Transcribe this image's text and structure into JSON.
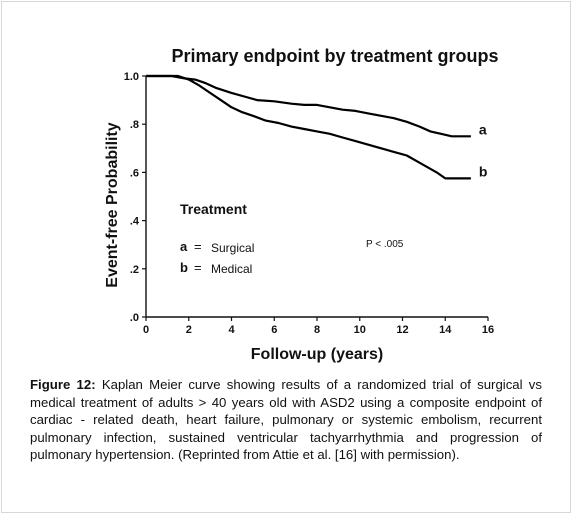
{
  "chart_data": {
    "type": "line",
    "title": "Primary endpoint by treatment groups",
    "xlabel": "Follow-up (years)",
    "ylabel": "Event-free Probability",
    "xlim": [
      0,
      16
    ],
    "ylim": [
      0,
      1.0
    ],
    "x_ticks": [
      "0",
      "2",
      "4",
      "6",
      "8",
      "10",
      "12",
      "14",
      "16"
    ],
    "y_ticks": [
      {
        "value": 0.0,
        "label": ".0"
      },
      {
        "value": 0.2,
        "label": ".2"
      },
      {
        "value": 0.4,
        "label": ".4"
      },
      {
        "value": 0.6,
        "label": ".6"
      },
      {
        "value": 0.8,
        "label": ".8"
      },
      {
        "value": 1.0,
        "label": "1.0"
      }
    ],
    "grid": false,
    "series": [
      {
        "name": "a",
        "color": "#000000",
        "points": [
          [
            0,
            1.0
          ],
          [
            1.2,
            1.0
          ],
          [
            1.8,
            0.99
          ],
          [
            2.3,
            0.985
          ],
          [
            2.8,
            0.97
          ],
          [
            3.3,
            0.95
          ],
          [
            4.0,
            0.93
          ],
          [
            4.6,
            0.915
          ],
          [
            5.2,
            0.9
          ],
          [
            6.0,
            0.895
          ],
          [
            6.8,
            0.885
          ],
          [
            7.4,
            0.88
          ],
          [
            8.0,
            0.88
          ],
          [
            8.6,
            0.87
          ],
          [
            9.2,
            0.86
          ],
          [
            9.8,
            0.855
          ],
          [
            10.4,
            0.845
          ],
          [
            11.0,
            0.835
          ],
          [
            11.6,
            0.825
          ],
          [
            12.2,
            0.81
          ],
          [
            12.8,
            0.79
          ],
          [
            13.3,
            0.77
          ],
          [
            13.8,
            0.76
          ],
          [
            14.3,
            0.75
          ],
          [
            15.2,
            0.75
          ]
        ]
      },
      {
        "name": "b",
        "color": "#000000",
        "points": [
          [
            0,
            1.0
          ],
          [
            1.5,
            1.0
          ],
          [
            2.0,
            0.985
          ],
          [
            2.5,
            0.96
          ],
          [
            3.0,
            0.93
          ],
          [
            3.5,
            0.9
          ],
          [
            4.0,
            0.87
          ],
          [
            4.5,
            0.85
          ],
          [
            5.0,
            0.835
          ],
          [
            5.6,
            0.815
          ],
          [
            6.2,
            0.805
          ],
          [
            6.8,
            0.79
          ],
          [
            7.4,
            0.78
          ],
          [
            8.0,
            0.77
          ],
          [
            8.6,
            0.76
          ],
          [
            9.2,
            0.745
          ],
          [
            9.8,
            0.73
          ],
          [
            10.4,
            0.715
          ],
          [
            11.0,
            0.7
          ],
          [
            11.6,
            0.685
          ],
          [
            12.2,
            0.67
          ],
          [
            12.7,
            0.645
          ],
          [
            13.2,
            0.62
          ],
          [
            13.6,
            0.6
          ],
          [
            14.0,
            0.575
          ],
          [
            15.2,
            0.575
          ]
        ]
      }
    ],
    "legend": {
      "title": "Treatment",
      "entries": [
        {
          "key": "a",
          "sep": "=",
          "label": "Surgical"
        },
        {
          "key": "b",
          "sep": "=",
          "label": "Medical"
        }
      ]
    },
    "annotations": {
      "p_value": "P < .005"
    }
  },
  "caption": {
    "label": "Figure 12:",
    "text": " Kaplan Meier curve showing results of a randomized trial of surgical vs medical treatment of adults > 40 years old with ASD2 using a composite endpoint of cardiac - related death, heart failure, pulmonary or systemic embolism, recurrent pulmonary infection, sustained ventricular tachyarrhythmia and progression of pulmonary hypertension. (Reprinted from Attie et al. [16] with permission)."
  }
}
